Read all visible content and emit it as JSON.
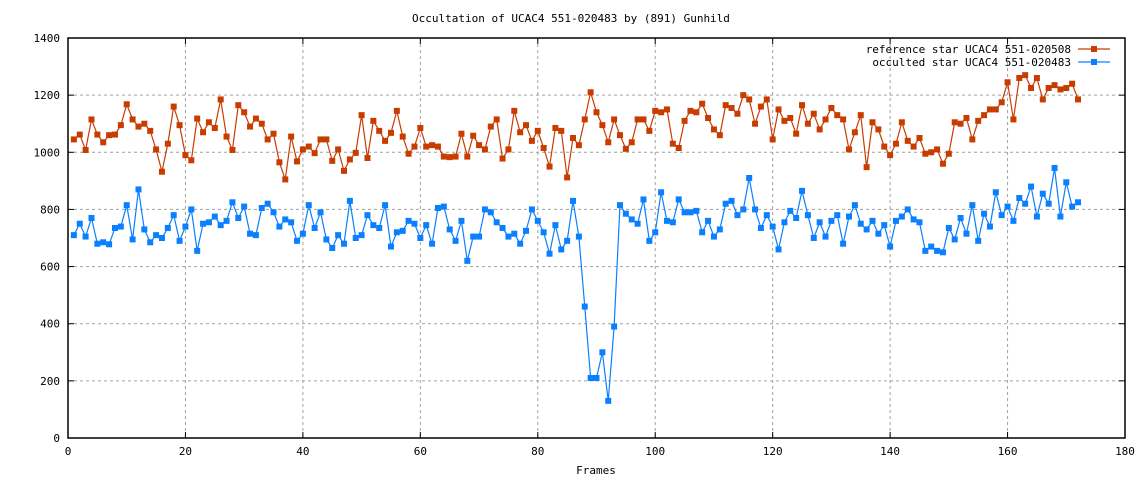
{
  "chart_data": {
    "type": "line",
    "title": "Occultation of UCAC4 551-020483 by (891) Gunhild",
    "xlabel": "Frames",
    "ylabel": "",
    "xlim": [
      0,
      180
    ],
    "ylim": [
      0,
      1400
    ],
    "xticks": [
      "0",
      "20",
      "40",
      "60",
      "80",
      "100",
      "120",
      "140",
      "160",
      "180"
    ],
    "yticks": [
      "0",
      "200",
      "400",
      "600",
      "800",
      "1000",
      "1200",
      "1400"
    ],
    "grid": true,
    "legend_position": "top-right",
    "series": [
      {
        "name": "reference star UCAC4 551-020508",
        "color": "#c83c00",
        "values": [
          1045,
          1062,
          1008,
          1115,
          1062,
          1035,
          1060,
          1062,
          1095,
          1168,
          1115,
          1090,
          1100,
          1075,
          1010,
          932,
          1030,
          1160,
          1095,
          990,
          972,
          1118,
          1070,
          1105,
          1085,
          1185,
          1055,
          1008,
          1165,
          1140,
          1090,
          1118,
          1100,
          1045,
          1065,
          965,
          905,
          1055,
          968,
          1010,
          1020,
          997,
          1045,
          1045,
          970,
          1010,
          935,
          975,
          998,
          1130,
          980,
          1110,
          1075,
          1040,
          1068,
          1145,
          1055,
          995,
          1020,
          1085,
          1020,
          1025,
          1020,
          985,
          983,
          985,
          1065,
          985,
          1058,
          1025,
          1010,
          1090,
          1115,
          978,
          1010,
          1145,
          1070,
          1095,
          1040,
          1075,
          1015,
          950,
          1085,
          1075,
          912,
          1050,
          1025,
          1115,
          1210,
          1140,
          1095,
          1035,
          1115,
          1060,
          1012,
          1035,
          1115,
          1115,
          1075,
          1145,
          1140,
          1150,
          1030,
          1015,
          1110,
          1145,
          1140,
          1170,
          1120,
          1080,
          1060,
          1165,
          1155,
          1135,
          1200,
          1185,
          1100,
          1160,
          1185,
          1045,
          1150,
          1110,
          1120,
          1065,
          1165,
          1100,
          1135,
          1080,
          1115,
          1155,
          1130,
          1115,
          1010,
          1070,
          1130,
          948,
          1105,
          1080,
          1020,
          990,
          1030,
          1105,
          1040,
          1020,
          1050,
          995,
          1000,
          1010,
          960,
          995,
          1105,
          1100,
          1120,
          1045,
          1110,
          1130,
          1150,
          1150,
          1175,
          1245,
          1115,
          1260,
          1270,
          1225,
          1260,
          1185,
          1225,
          1235,
          1220,
          1225,
          1240,
          1185
        ]
      },
      {
        "name": "occulted star UCAC4 551-020483",
        "color": "#0a80ff",
        "values": [
          710,
          750,
          705,
          770,
          680,
          685,
          678,
          735,
          740,
          815,
          695,
          870,
          730,
          685,
          710,
          700,
          735,
          780,
          690,
          740,
          800,
          655,
          750,
          755,
          775,
          745,
          760,
          825,
          770,
          810,
          715,
          710,
          805,
          820,
          790,
          740,
          765,
          755,
          690,
          715,
          815,
          735,
          790,
          695,
          665,
          710,
          680,
          830,
          700,
          710,
          780,
          745,
          735,
          815,
          670,
          720,
          725,
          760,
          750,
          700,
          745,
          680,
          805,
          810,
          730,
          690,
          760,
          620,
          705,
          705,
          800,
          790,
          755,
          735,
          705,
          715,
          680,
          725,
          800,
          760,
          720,
          645,
          745,
          660,
          690,
          830,
          705,
          460,
          210,
          210,
          300,
          130,
          390,
          815,
          785,
          765,
          750,
          835,
          690,
          720,
          860,
          760,
          755,
          835,
          790,
          790,
          795,
          720,
          760,
          705,
          730,
          820,
          830,
          780,
          800,
          910,
          800,
          735,
          780,
          740,
          660,
          755,
          795,
          770,
          865,
          780,
          700,
          755,
          705,
          760,
          780,
          680,
          775,
          815,
          750,
          730,
          760,
          715,
          745,
          670,
          760,
          775,
          800,
          765,
          755,
          655,
          670,
          655,
          650,
          735,
          695,
          770,
          715,
          815,
          690,
          785,
          740,
          860,
          780,
          810,
          760,
          840,
          820,
          880,
          775,
          855,
          820,
          945,
          775,
          895,
          810,
          825
        ]
      }
    ]
  }
}
